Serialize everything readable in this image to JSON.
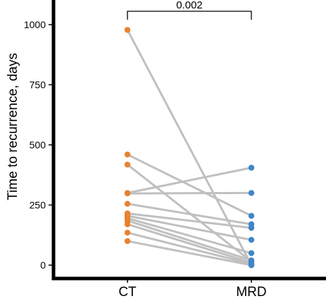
{
  "chart_data": {
    "type": "scatter",
    "title": "",
    "xlabel": "",
    "ylabel": "Time to recurrence, days",
    "categories": [
      "CT",
      "MRD"
    ],
    "ylim": [
      -20,
      1040
    ],
    "yticks": [
      0,
      250,
      500,
      750,
      1000
    ],
    "grid": false,
    "legend": "none",
    "pairs": [
      [
        978,
        0
      ],
      [
        460,
        205
      ],
      [
        418,
        15
      ],
      [
        300,
        405
      ],
      [
        298,
        300
      ],
      [
        255,
        170
      ],
      [
        215,
        155
      ],
      [
        205,
        105
      ],
      [
        195,
        50
      ],
      [
        185,
        20
      ],
      [
        170,
        10
      ],
      [
        135,
        5
      ],
      [
        100,
        0
      ]
    ],
    "annotation": {
      "text": "0.002",
      "between": [
        "CT",
        "MRD"
      ]
    },
    "colors": {
      "ct_points": "#e9822e",
      "mrd_points": "#3f86c8",
      "lines": "#c0c0c0",
      "axis": "#000000"
    }
  }
}
